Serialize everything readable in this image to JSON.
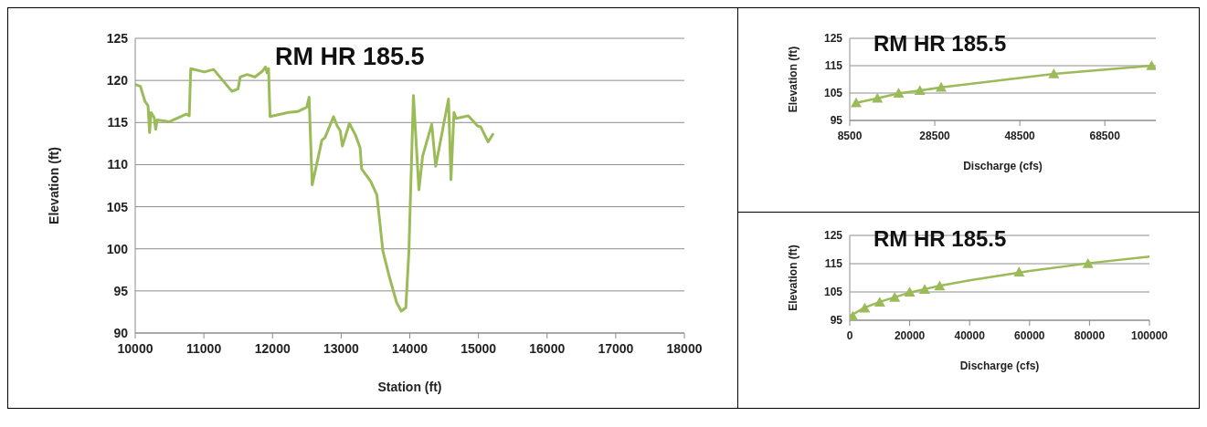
{
  "chart_data": [
    {
      "type": "line",
      "title": "RM HR 185.5",
      "xlabel": "Station (ft)",
      "ylabel": "Elevation (ft)",
      "xlim": [
        10000,
        18000
      ],
      "xticks": [
        10000,
        11000,
        12000,
        13000,
        14000,
        15000,
        16000,
        17000,
        18000
      ],
      "ylim": [
        90,
        125
      ],
      "yticks": [
        90,
        95,
        100,
        105,
        110,
        115,
        120,
        125
      ],
      "grid": "y",
      "x": [
        10000,
        10076,
        10142,
        10187,
        10209,
        10231,
        10276,
        10298,
        10320,
        10498,
        10742,
        10787,
        10809,
        11009,
        11142,
        11409,
        11498,
        11529,
        11631,
        11742,
        11853,
        11898,
        11920,
        11942,
        11964,
        12231,
        12364,
        12498,
        12533,
        12578,
        12720,
        12764,
        12889,
        12942,
        12987,
        13018,
        13120,
        13209,
        13276,
        13298,
        13431,
        13520,
        13609,
        13698,
        13809,
        13876,
        13942,
        13987,
        14053,
        14133,
        14187,
        14320,
        14377,
        14564,
        14600,
        14644,
        14676,
        14853,
        14987,
        15031,
        15142,
        15209
      ],
      "series": [
        {
          "color": "#9bbb59",
          "values": [
            119.5,
            119.3,
            117.5,
            117,
            113.8,
            116.2,
            115.6,
            114.2,
            115.3,
            115.1,
            116,
            115.8,
            121.4,
            121,
            121.3,
            118.7,
            119,
            120.4,
            120.7,
            120.4,
            121.1,
            121.6,
            120.9,
            121.4,
            115.7,
            116.2,
            116.3,
            116.8,
            118,
            107.6,
            112.9,
            113.2,
            115.7,
            114.6,
            114,
            112.2,
            114.9,
            113.5,
            112,
            109.5,
            108,
            106.4,
            99.7,
            96.8,
            93.6,
            92.6,
            93,
            99.7,
            118.2,
            107,
            111,
            114.8,
            109.8,
            117.8,
            108.2,
            116.2,
            115.5,
            115.8,
            114.6,
            114.5,
            112.7,
            113.6
          ]
        }
      ]
    },
    {
      "type": "line",
      "title": "RM HR 185.5",
      "xlabel": "Discharge (cfs)",
      "ylabel": "Elevation (ft)",
      "xlim": [
        8500,
        80500
      ],
      "xticks": [
        8500,
        28500,
        48500,
        68500
      ],
      "ylim": [
        95,
        125
      ],
      "yticks": [
        95,
        105,
        115,
        125
      ],
      "grid": "y",
      "marker": "triangle",
      "x": [
        10000,
        15000,
        20000,
        25000,
        30000,
        56500,
        79500
      ],
      "series": [
        {
          "color": "#9bbb59",
          "values": [
            101.4,
            103.1,
            104.9,
            105.9,
            107.1,
            112,
            115
          ]
        }
      ]
    },
    {
      "type": "scatter",
      "title": "RM HR 185.5",
      "xlabel": "Discharge (cfs)",
      "ylabel": "Elevation (ft)",
      "xlim": [
        0,
        100000
      ],
      "xticks": [
        0,
        20000,
        40000,
        60000,
        80000,
        100000
      ],
      "ylim": [
        95,
        125
      ],
      "yticks": [
        95,
        105,
        115,
        125
      ],
      "grid": "y",
      "marker": "triangle",
      "x": [
        1000,
        5000,
        10000,
        15000,
        20000,
        25000,
        30000,
        56500,
        79500
      ],
      "series": [
        {
          "color": "#9bbb59",
          "values": [
            96.4,
            99.3,
            101.4,
            103.1,
            104.9,
            105.9,
            107.1,
            112,
            115
          ]
        },
        {
          "type": "line",
          "marker": "none",
          "color": "#9bbb59",
          "x": [
            0,
            5000,
            10000,
            20000,
            30000,
            40000,
            60000,
            80000,
            100000
          ],
          "values": [
            96.5,
            99.5,
            101.5,
            104.8,
            107.2,
            109.1,
            112.4,
            115.2,
            117.5
          ]
        }
      ]
    }
  ]
}
